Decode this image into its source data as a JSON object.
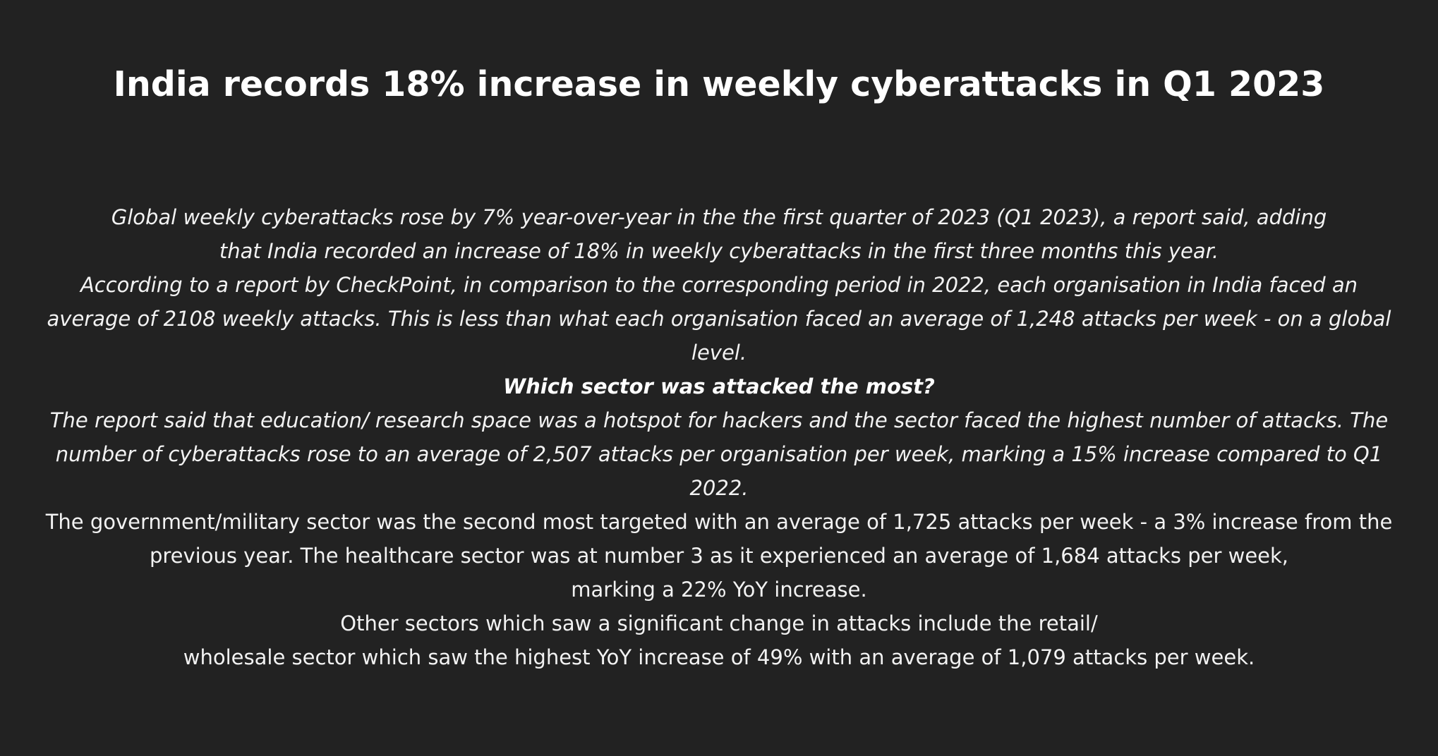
{
  "headline": "India records 18% increase in weekly cyberattacks in Q1 2023",
  "body": {
    "intro_lines": [
      "Global weekly cyberattacks rose by 7% year-over-year in the the first quarter of 2023 (Q1 2023), a report said, adding",
      "that India recorded an increase of 18% in weekly cyberattacks in the first three months this year.",
      "According to a report by CheckPoint, in comparison to the corresponding period in 2022, each organisation in India faced an",
      "average of 2108 weekly attacks. This is less than what each organisation faced an average of 1,248 attacks per week - on a global",
      "level."
    ],
    "question": "Which sector was attacked the most?",
    "education_lines": [
      "The report said that education/ research space was a hotspot for hackers and the sector faced the highest number of attacks. The",
      "number of cyberattacks rose to an average of 2,507 attacks per organisation per week, marking a 15% increase compared to Q1",
      "2022."
    ],
    "sector_lines": [
      "The government/military sector was the second most targeted with an average of 1,725 attacks per week - a 3% increase from the",
      "previous year. The healthcare sector was at number 3 as it experienced an average of 1,684 attacks per week,",
      "marking a 22% YoY increase.",
      "Other sectors which saw a significant change in attacks include the retail/",
      "wholesale sector which saw the highest YoY increase of 49% with an average of 1,079 attacks per week."
    ]
  }
}
